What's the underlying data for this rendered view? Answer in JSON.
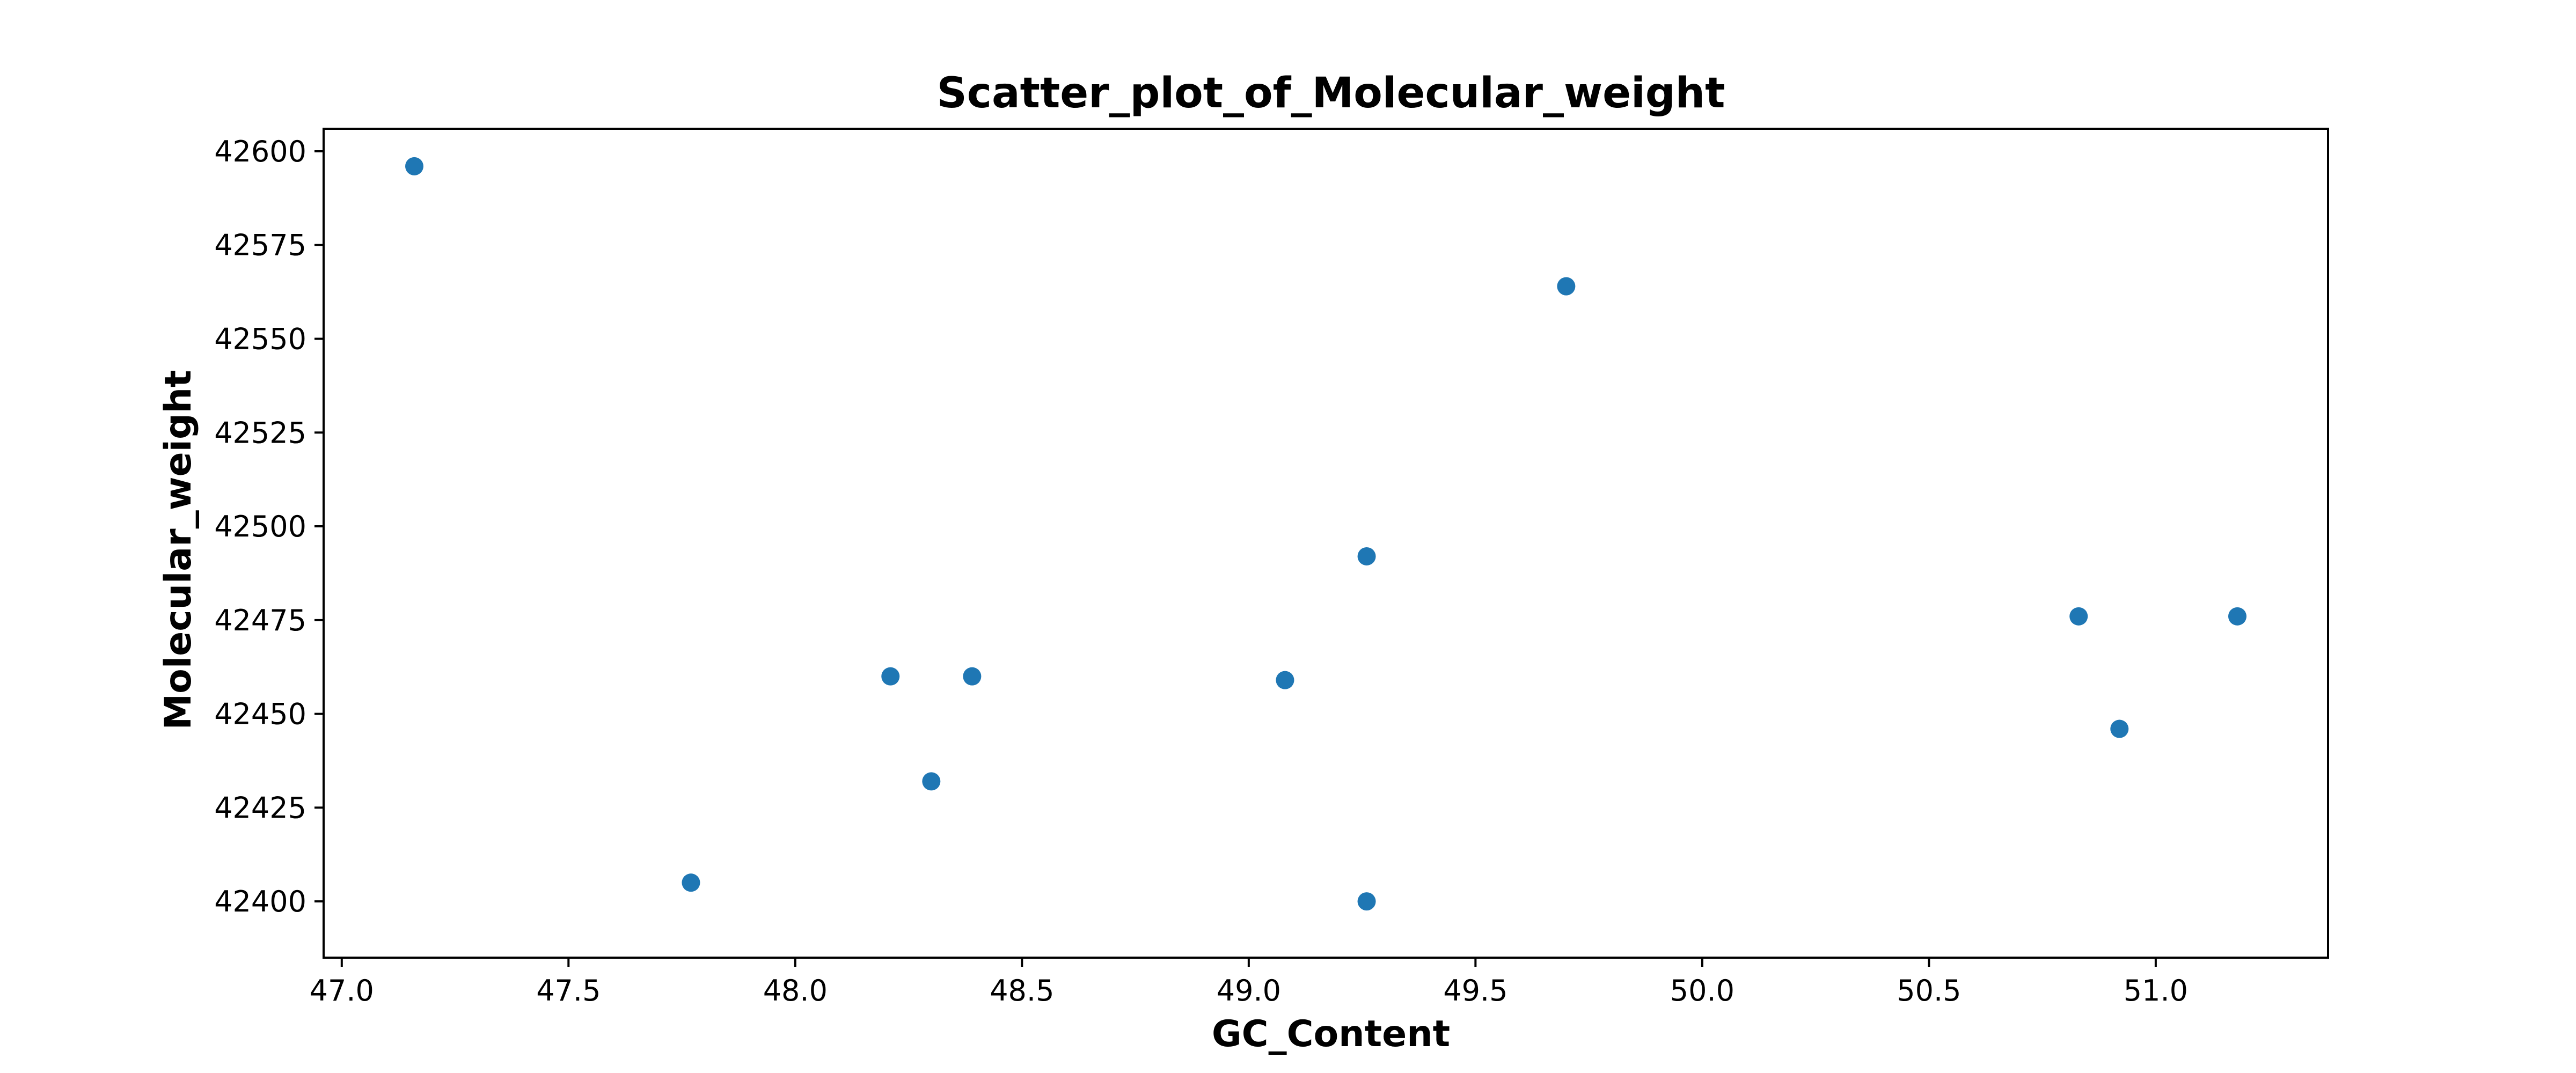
{
  "chart_data": {
    "type": "scatter",
    "title": "Scatter_plot_of_Molecular_weight",
    "xlabel": "GC_Content",
    "ylabel": "Molecular_weight",
    "xlim": [
      46.96,
      51.38
    ],
    "ylim": [
      42385,
      42606
    ],
    "xticks": [
      47.0,
      47.5,
      48.0,
      48.5,
      49.0,
      49.5,
      50.0,
      50.5,
      51.0
    ],
    "xtick_labels": [
      "47.0",
      "47.5",
      "48.0",
      "48.5",
      "49.0",
      "49.5",
      "50.0",
      "50.5",
      "51.0"
    ],
    "yticks": [
      42400,
      42425,
      42450,
      42475,
      42500,
      42525,
      42550,
      42575,
      42600
    ],
    "ytick_labels": [
      "42400",
      "42425",
      "42450",
      "42475",
      "42500",
      "42525",
      "42550",
      "42575",
      "42600"
    ],
    "grid": false,
    "marker_color": "#1f77b4",
    "points": [
      {
        "x": 47.16,
        "y": 42596
      },
      {
        "x": 47.77,
        "y": 42405
      },
      {
        "x": 48.21,
        "y": 42460
      },
      {
        "x": 48.3,
        "y": 42432
      },
      {
        "x": 48.39,
        "y": 42460
      },
      {
        "x": 49.08,
        "y": 42459
      },
      {
        "x": 49.26,
        "y": 42492
      },
      {
        "x": 49.26,
        "y": 42400
      },
      {
        "x": 49.7,
        "y": 42564
      },
      {
        "x": 50.83,
        "y": 42476
      },
      {
        "x": 50.92,
        "y": 42446
      },
      {
        "x": 51.18,
        "y": 42476
      }
    ]
  }
}
